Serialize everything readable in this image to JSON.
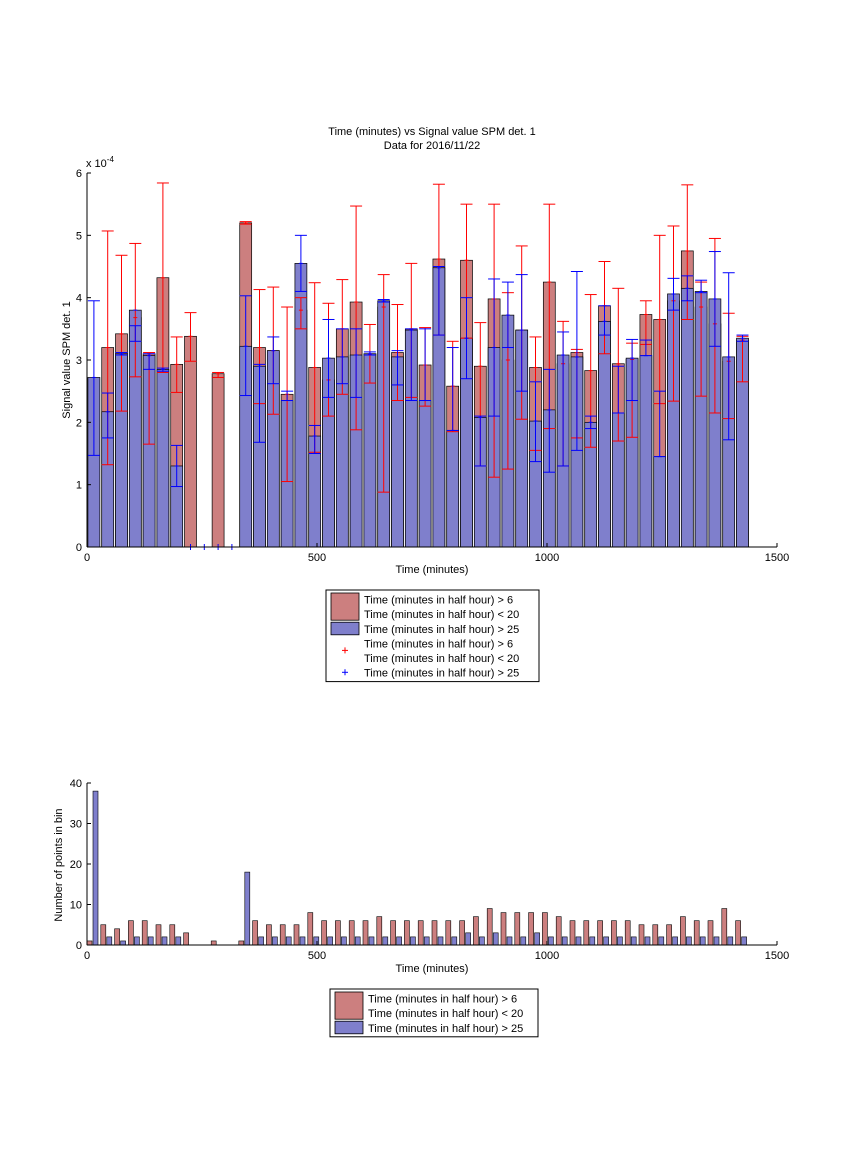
{
  "chart_data": [
    {
      "type": "bar",
      "title": "Time (minutes) vs Signal value SPM det. 1",
      "subtitle": "Data for 2016/11/22",
      "xlabel": "Time (minutes)",
      "ylabel": "Signal value SPM det. 1",
      "y_exponent_label": "x 10",
      "y_exponent_power": "-4",
      "xlim": [
        0,
        1500
      ],
      "ylim": [
        0,
        6
      ],
      "x_ticks": [
        0,
        500,
        1000,
        1500
      ],
      "y_ticks": [
        0,
        1,
        2,
        3,
        4,
        5,
        6
      ],
      "grid": false,
      "legend_position": "below",
      "legend": [
        {
          "kind": "patch",
          "color": "#cc7f7f",
          "lines": [
            "Time (minutes in half hour) > 6",
            "Time (minutes in half hour) < 20"
          ]
        },
        {
          "kind": "patch",
          "color": "#7f7fcc",
          "lines": [
            "Time (minutes in half hour) > 25"
          ]
        },
        {
          "kind": "marker",
          "color": "#ff0000",
          "lines": [
            "Time (minutes in half hour) > 6",
            "Time (minutes in half hour) < 20"
          ]
        },
        {
          "kind": "marker",
          "color": "#0000ff",
          "lines": [
            "Time (minutes in half hour) > 25"
          ]
        }
      ],
      "series": [
        {
          "color": "#cc7f7f",
          "errcolor": "#ff0000",
          "x": [
            45,
            75,
            105,
            135,
            165,
            195,
            225,
            285,
            345,
            375,
            405,
            435,
            465,
            495,
            525,
            555,
            585,
            615,
            645,
            675,
            705,
            735,
            765,
            795,
            825,
            855,
            885,
            915,
            945,
            975,
            1005,
            1035,
            1065,
            1095,
            1125,
            1155,
            1185,
            1215,
            1245,
            1275,
            1305,
            1335,
            1365,
            1395,
            1425
          ],
          "values": [
            3.2,
            3.42,
            3.68,
            3.1,
            4.32,
            2.93,
            3.38,
            2.78,
            5.2,
            3.2,
            3.15,
            2.45,
            3.8,
            2.88,
            2.68,
            3.5,
            3.93,
            3.1,
            3.85,
            3.12,
            3.5,
            2.92,
            4.62,
            2.58,
            4.6,
            2.9,
            3.98,
            3.0,
            3.48,
            2.88,
            4.25,
            2.94,
            3.12,
            2.83,
            3.87,
            2.94,
            3.01,
            3.73,
            3.65,
            3.95,
            4.75,
            3.85,
            3.58,
            2.98,
            3.32
          ],
          "err_low": [
            1.32,
            2.18,
            2.73,
            1.65,
            2.8,
            2.48,
            2.98,
            2.72,
            5.18,
            2.3,
            2.13,
            1.05,
            3.5,
            1.52,
            2.1,
            2.45,
            1.88,
            2.63,
            0.88,
            2.35,
            2.4,
            2.26,
            3.4,
            1.85,
            3.35,
            1.3,
            1.12,
            1.25,
            2.05,
            1.55,
            1.9,
            1.3,
            1.75,
            1.6,
            3.1,
            1.7,
            1.76,
            3.25,
            2.3,
            2.34,
            3.65,
            2.42,
            2.15,
            2.06,
            2.65
          ],
          "err_high": [
            5.07,
            4.68,
            4.87,
            3.12,
            5.84,
            3.37,
            3.76,
            2.8,
            5.22,
            4.13,
            4.17,
            3.85,
            4.0,
            4.24,
            3.91,
            4.29,
            5.47,
            3.57,
            4.37,
            3.89,
            4.55,
            3.52,
            5.82,
            3.3,
            5.5,
            3.6,
            5.5,
            4.08,
            4.83,
            3.37,
            5.5,
            3.62,
            3.17,
            4.05,
            4.58,
            4.15,
            3.27,
            3.95,
            5.0,
            5.15,
            5.81,
            4.25,
            4.95,
            3.75,
            3.38
          ]
        },
        {
          "color": "#7f7fcc",
          "errcolor": "#0000ff",
          "x": [
            15,
            45,
            75,
            105,
            135,
            165,
            195,
            345,
            375,
            405,
            435,
            465,
            495,
            525,
            555,
            585,
            615,
            645,
            675,
            705,
            735,
            765,
            795,
            825,
            855,
            885,
            915,
            945,
            975,
            1005,
            1035,
            1065,
            1095,
            1125,
            1155,
            1185,
            1215,
            1245,
            1275,
            1305,
            1335,
            1365,
            1395,
            1425
          ],
          "values": [
            2.72,
            2.17,
            3.1,
            3.8,
            3.07,
            2.85,
            1.3,
            3.22,
            2.9,
            3.15,
            2.35,
            4.55,
            1.78,
            3.03,
            3.05,
            3.08,
            3.1,
            3.95,
            3.05,
            3.48,
            2.35,
            4.48,
            1.87,
            3.35,
            2.08,
            3.2,
            3.72,
            3.48,
            2.02,
            2.2,
            3.08,
            3.05,
            2.0,
            3.62,
            2.15,
            3.03,
            3.07,
            1.45,
            4.06,
            4.15,
            4.1,
            3.98,
            3.05,
            3.35
          ],
          "err_low": [
            1.47,
            1.75,
            3.08,
            3.3,
            2.85,
            2.82,
            0.97,
            2.43,
            1.68,
            2.62,
            2.35,
            4.1,
            1.5,
            2.4,
            2.62,
            2.4,
            3.08,
            3.93,
            2.6,
            2.35,
            2.35,
            3.4,
            1.87,
            2.7,
            1.3,
            2.1,
            3.2,
            2.5,
            1.37,
            1.2,
            1.3,
            1.55,
            1.9,
            3.4,
            2.15,
            2.35,
            3.07,
            1.45,
            3.8,
            3.95,
            4.08,
            3.22,
            1.72,
            3.3
          ],
          "err_high": [
            3.95,
            2.47,
            3.12,
            3.55,
            3.1,
            2.87,
            1.63,
            4.03,
            2.93,
            3.37,
            2.5,
            5.0,
            1.95,
            3.65,
            3.5,
            3.5,
            3.13,
            3.97,
            3.15,
            3.5,
            3.5,
            4.5,
            3.2,
            4.0,
            2.1,
            4.3,
            4.25,
            4.37,
            2.65,
            2.85,
            3.45,
            4.42,
            2.1,
            3.87,
            2.9,
            3.33,
            3.32,
            2.5,
            4.31,
            4.35,
            4.28,
            4.74,
            4.4,
            3.4
          ]
        }
      ],
      "zero_markers": {
        "color": "#0000ff",
        "x": [
          225,
          255,
          285,
          315
        ]
      }
    },
    {
      "type": "bar",
      "xlabel": "Time (minutes)",
      "ylabel": "Number of points in bin",
      "xlim": [
        0,
        1500
      ],
      "ylim": [
        0,
        40
      ],
      "x_ticks": [
        0,
        500,
        1000,
        1500
      ],
      "y_ticks": [
        0,
        10,
        20,
        30,
        40
      ],
      "grid": false,
      "legend_position": "below",
      "legend": [
        {
          "kind": "patch",
          "color": "#cc7f7f",
          "lines": [
            "Time (minutes in half hour) > 6",
            "Time (minutes in half hour) < 20"
          ]
        },
        {
          "kind": "patch",
          "color": "#7f7fcc",
          "lines": [
            "Time (minutes in half hour) > 25"
          ]
        }
      ],
      "series": [
        {
          "color": "#cc7f7f",
          "x": [
            0,
            30,
            60,
            90,
            120,
            150,
            180,
            210,
            270,
            330,
            360,
            390,
            420,
            450,
            480,
            510,
            540,
            570,
            600,
            630,
            660,
            690,
            720,
            750,
            780,
            810,
            840,
            870,
            900,
            930,
            960,
            990,
            1020,
            1050,
            1080,
            1110,
            1140,
            1170,
            1200,
            1230,
            1260,
            1290,
            1320,
            1350,
            1380,
            1410
          ],
          "values": [
            1,
            5,
            4,
            6,
            6,
            5,
            5,
            3,
            1,
            1,
            6,
            5,
            5,
            5,
            8,
            6,
            6,
            6,
            6,
            7,
            6,
            6,
            6,
            6,
            6,
            6,
            7,
            9,
            8,
            8,
            8,
            8,
            7,
            6,
            6,
            6,
            6,
            6,
            5,
            5,
            5,
            7,
            6,
            6,
            9,
            6
          ]
        },
        {
          "color": "#7f7fcc",
          "x": [
            0,
            30,
            60,
            90,
            120,
            150,
            180,
            330,
            360,
            390,
            420,
            450,
            480,
            510,
            540,
            570,
            600,
            630,
            660,
            690,
            720,
            750,
            780,
            810,
            840,
            870,
            900,
            930,
            960,
            990,
            1020,
            1050,
            1080,
            1110,
            1140,
            1170,
            1200,
            1230,
            1260,
            1290,
            1320,
            1350,
            1380,
            1410
          ],
          "values": [
            38,
            2,
            1,
            2,
            2,
            2,
            2,
            18,
            2,
            2,
            2,
            2,
            2,
            2,
            2,
            2,
            2,
            2,
            2,
            2,
            2,
            2,
            2,
            3,
            2,
            3,
            2,
            2,
            3,
            2,
            2,
            2,
            2,
            2,
            2,
            2,
            2,
            2,
            2,
            2,
            2,
            2,
            2,
            2
          ]
        }
      ]
    }
  ]
}
